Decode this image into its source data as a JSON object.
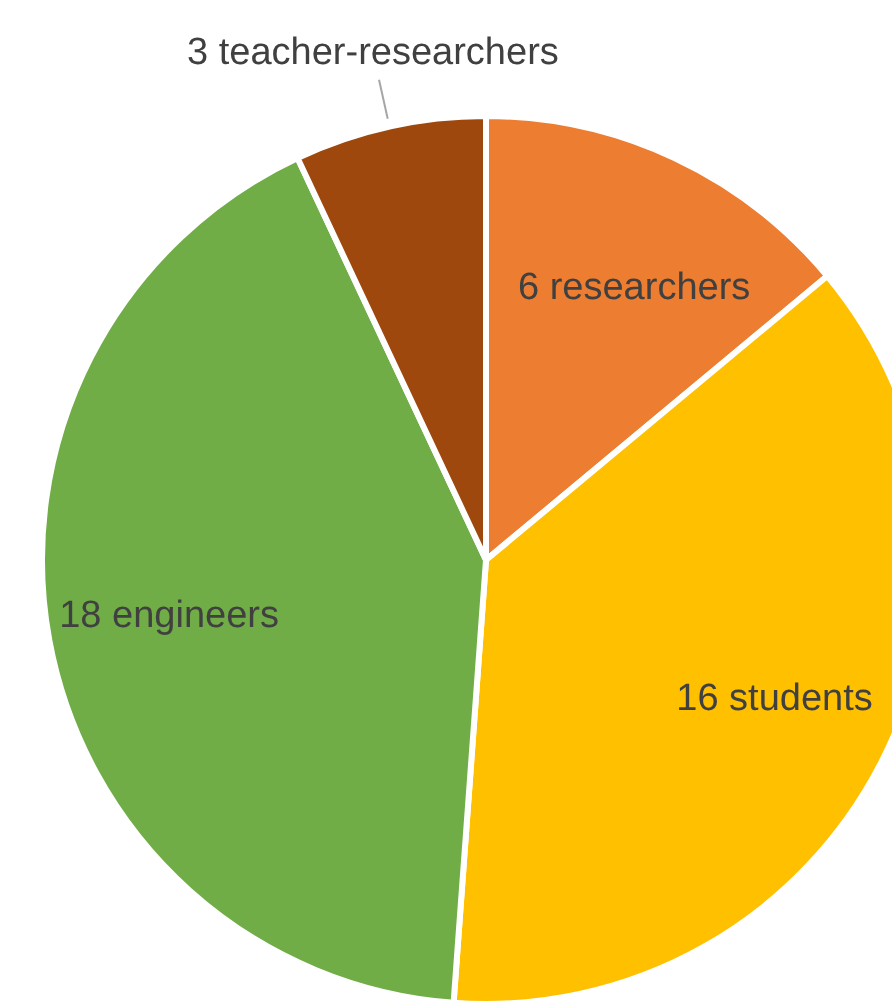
{
  "chart_data": {
    "type": "pie",
    "categories": [
      "6 researchers",
      "16 students",
      "18 engineers",
      "3 teacher-researchers"
    ],
    "values": [
      6,
      16,
      18,
      3
    ],
    "colors": [
      "#ed7d31",
      "#ffc000",
      "#70ad47",
      "#9e480e"
    ]
  }
}
